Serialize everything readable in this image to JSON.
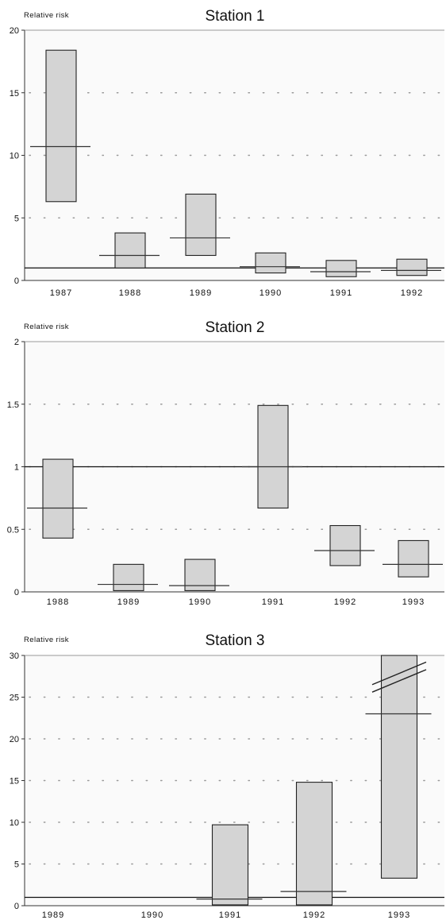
{
  "chart_data": [
    {
      "type": "bar",
      "subtype": "interval",
      "title": "Station 1",
      "ylabel": "Relative risk",
      "xlabel": "",
      "ylim": [
        0,
        20
      ],
      "yticks": [
        0,
        5,
        10,
        15,
        20
      ],
      "ytick_labels": [
        "0",
        "5",
        "10",
        "15",
        "20"
      ],
      "reference_line": 1,
      "grid": "dotted",
      "categories": [
        "1987",
        "1988",
        "1989",
        "1990",
        "1991",
        "1992"
      ],
      "series": [
        {
          "values": [
            10.7,
            2.0,
            3.4,
            1.1,
            0.7,
            0.8
          ],
          "lower": [
            6.3,
            1.0,
            2.0,
            0.6,
            0.3,
            0.4
          ],
          "upper": [
            18.4,
            3.8,
            6.9,
            2.2,
            1.6,
            1.7
          ]
        }
      ],
      "fill_color": "#d4d4d4"
    },
    {
      "type": "bar",
      "subtype": "interval",
      "title": "Station 2",
      "ylabel": "Relative risk",
      "xlabel": "",
      "ylim": [
        0,
        2
      ],
      "yticks": [
        0,
        0.5,
        1,
        1.5,
        2
      ],
      "ytick_labels": [
        "0",
        "0.5",
        "1",
        "1.5",
        "2"
      ],
      "reference_line": 1,
      "grid": "dotted",
      "categories": [
        "1988",
        "1989",
        "1990",
        "1991",
        "1992",
        "1993"
      ],
      "series": [
        {
          "values": [
            0.67,
            0.06,
            0.05,
            1.0,
            0.33,
            0.22
          ],
          "lower": [
            0.43,
            0.01,
            0.01,
            0.67,
            0.21,
            0.12
          ],
          "upper": [
            1.06,
            0.22,
            0.26,
            1.49,
            0.53,
            0.41
          ]
        }
      ],
      "fill_color": "#d4d4d4"
    },
    {
      "type": "bar",
      "subtype": "interval",
      "title": "Station 3",
      "ylabel": "Relative risk",
      "xlabel": "",
      "ylim": [
        0,
        30
      ],
      "yticks": [
        0,
        5,
        10,
        15,
        20,
        25,
        30
      ],
      "ytick_labels": [
        "0",
        "5",
        "10",
        "15",
        "20",
        "25",
        "30"
      ],
      "reference_line": 1,
      "grid": "dotted",
      "categories": [
        "1989",
        "1990",
        "1991",
        "1992",
        "1993"
      ],
      "series": [
        {
          "values": [
            null,
            null,
            0.8,
            1.7,
            23.0
          ],
          "lower": [
            null,
            null,
            0.1,
            0.1,
            3.3
          ],
          "upper": [
            null,
            null,
            9.7,
            14.8,
            30
          ]
        }
      ],
      "truncated_upper": [
        false,
        false,
        false,
        false,
        true
      ],
      "fill_color": "#d4d4d4"
    }
  ]
}
